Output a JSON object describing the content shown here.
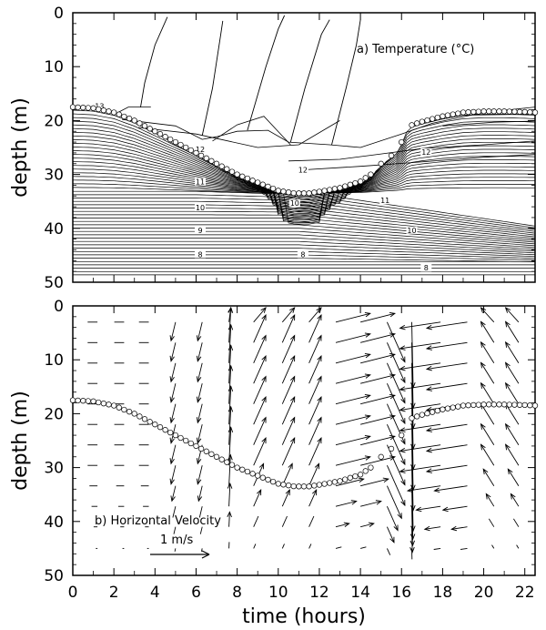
{
  "chart_data": [
    {
      "type": "contour",
      "title": "a) Temperature (°C)",
      "ylabel": "depth (m)",
      "xlim": [
        0,
        22.5
      ],
      "ylim": [
        50,
        0
      ],
      "yticks": [
        "0",
        "10",
        "20",
        "30",
        "40",
        "50"
      ],
      "contour_labels": [
        {
          "t": 1.3,
          "d": 17.5,
          "text": "13"
        },
        {
          "t": 6.2,
          "d": 25.5,
          "text": "12"
        },
        {
          "t": 11.2,
          "d": 29.3,
          "text": "12"
        },
        {
          "t": 17.2,
          "d": 26.0,
          "text": "12"
        },
        {
          "t": 6.2,
          "d": 31.5,
          "text": "11"
        },
        {
          "t": 15.2,
          "d": 35.0,
          "text": "11"
        },
        {
          "t": 6.2,
          "d": 36.3,
          "text": "10"
        },
        {
          "t": 10.8,
          "d": 35.5,
          "text": "10"
        },
        {
          "t": 16.5,
          "d": 40.5,
          "text": "10"
        },
        {
          "t": 6.2,
          "d": 40.5,
          "text": "9"
        },
        {
          "t": 6.2,
          "d": 45.0,
          "text": "8"
        },
        {
          "t": 11.2,
          "d": 45.0,
          "text": "8"
        },
        {
          "t": 17.2,
          "d": 47.5,
          "text": "8"
        }
      ]
    },
    {
      "type": "vector",
      "title": "b) Horizontal Velocity",
      "ylabel": "depth (m)",
      "xlabel": "time (hours)",
      "xlim": [
        0,
        22.5
      ],
      "ylim": [
        50,
        0
      ],
      "xticks": [
        "0",
        "2",
        "4",
        "6",
        "8",
        "10",
        "12",
        "14",
        "16",
        "18",
        "20",
        "22"
      ],
      "yticks": [
        "0",
        "10",
        "20",
        "30",
        "40",
        "50"
      ],
      "scale_label": "1 m/s",
      "scale_speed": 1.0
    }
  ],
  "interface_depth": {
    "t": [
      0,
      1,
      2,
      3,
      4,
      5,
      6,
      7,
      8,
      9,
      10,
      10.8,
      11.5,
      12,
      13,
      14,
      14.5,
      15,
      15.5,
      15.8,
      16,
      16.2,
      16.4,
      16.6,
      17,
      18,
      19,
      20,
      21,
      22,
      22.5
    ],
    "d": [
      17.5,
      17.7,
      18.5,
      20.0,
      22.0,
      24.0,
      26.0,
      28.0,
      30.0,
      31.5,
      33.0,
      33.5,
      33.5,
      33.2,
      32.5,
      31.3,
      30.0,
      28.0,
      26.5,
      25.5,
      24.0,
      22.0,
      21.0,
      20.7,
      20.2,
      19.2,
      18.5,
      18.3,
      18.3,
      18.4,
      18.5
    ]
  }
}
